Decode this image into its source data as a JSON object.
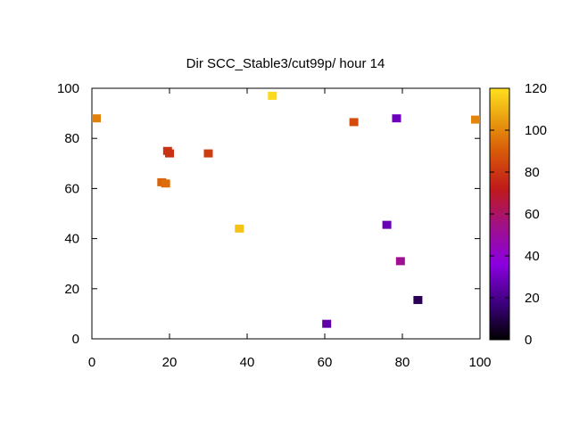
{
  "chart_data": {
    "type": "heatmap",
    "title": "Dir SCC_Stable3/cut99p/ hour 14",
    "xlabel": "",
    "ylabel": "",
    "xlim": [
      0,
      100
    ],
    "ylim": [
      0,
      100
    ],
    "x_ticks": [
      "0",
      "20",
      "40",
      "60",
      "80",
      "100"
    ],
    "y_ticks": [
      "0",
      "20",
      "40",
      "60",
      "80",
      "100"
    ],
    "colorbar": {
      "range": [
        0,
        120
      ],
      "ticks": [
        "0",
        "20",
        "40",
        "60",
        "80",
        "100",
        "120"
      ],
      "palette": [
        "#000000",
        "#3a007a",
        "#8a00e0",
        "#a0108a",
        "#c01a1a",
        "#d85a08",
        "#eaa010",
        "#ffe020"
      ]
    },
    "grid": false,
    "points": [
      {
        "x": 0.5,
        "y": 88,
        "value": 95
      },
      {
        "x": 19.5,
        "y": 75,
        "value": 75
      },
      {
        "x": 20,
        "y": 74,
        "value": 75
      },
      {
        "x": 30,
        "y": 74,
        "value": 78
      },
      {
        "x": 18,
        "y": 62.5,
        "value": 88
      },
      {
        "x": 19,
        "y": 62,
        "value": 90
      },
      {
        "x": 38,
        "y": 44,
        "value": 112
      },
      {
        "x": 46.5,
        "y": 97,
        "value": 118
      },
      {
        "x": 67.5,
        "y": 86.5,
        "value": 82
      },
      {
        "x": 78.5,
        "y": 88,
        "value": 28
      },
      {
        "x": 99,
        "y": 87.5,
        "value": 96
      },
      {
        "x": 76,
        "y": 45.5,
        "value": 27
      },
      {
        "x": 79.5,
        "y": 31,
        "value": 50
      },
      {
        "x": 84,
        "y": 15.5,
        "value": 12
      },
      {
        "x": 60.5,
        "y": 6,
        "value": 25
      }
    ]
  }
}
